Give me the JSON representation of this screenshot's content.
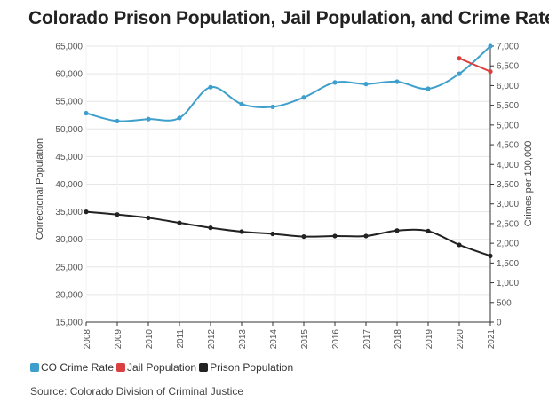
{
  "title": "Colorado Prison Population, Jail Population, and Crime Rate",
  "source": "Source: Colorado Division of Criminal Justice",
  "chart_data": {
    "type": "line",
    "x": [
      "2008",
      "2009",
      "2010",
      "2011",
      "2012",
      "2013",
      "2014",
      "2015",
      "2016",
      "2017",
      "2018",
      "2019",
      "2020",
      "2021"
    ],
    "left_axis": {
      "label": "Correctional Population",
      "ylim": [
        15000,
        65000
      ],
      "ticks": [
        "15,000",
        "20,000",
        "25,000",
        "30,000",
        "35,000",
        "40,000",
        "45,000",
        "50,000",
        "55,000",
        "60,000",
        "65,000"
      ]
    },
    "right_axis": {
      "label": "Crimes per 100,000",
      "ylim": [
        0,
        7000
      ],
      "ticks": [
        "0",
        "500",
        "1,000",
        "1,500",
        "2,000",
        "2,500",
        "3,000",
        "3,500",
        "4,000",
        "4,500",
        "5,000",
        "5,500",
        "6,000",
        "6,500",
        "7,000"
      ]
    },
    "series": [
      {
        "name": "CO Crime Rate",
        "axis": "right",
        "color": "#3f9fcc",
        "values": [
          5300,
          5100,
          5150,
          5180,
          5960,
          5530,
          5460,
          5700,
          6080,
          6040,
          6100,
          5920,
          6300,
          7000
        ]
      },
      {
        "name": "Jail Population",
        "axis": "left",
        "color": "#d9403f",
        "values": [
          null,
          null,
          null,
          null,
          null,
          null,
          null,
          null,
          null,
          null,
          null,
          null,
          62800,
          60400
        ]
      },
      {
        "name": "Prison Population",
        "axis": "left",
        "color": "#222222",
        "values": [
          35000,
          34500,
          33900,
          33000,
          32100,
          31400,
          31000,
          30500,
          30600,
          30600,
          31600,
          31500,
          29000,
          27000
        ]
      }
    ],
    "grid": true,
    "legend": "bottom-left"
  }
}
